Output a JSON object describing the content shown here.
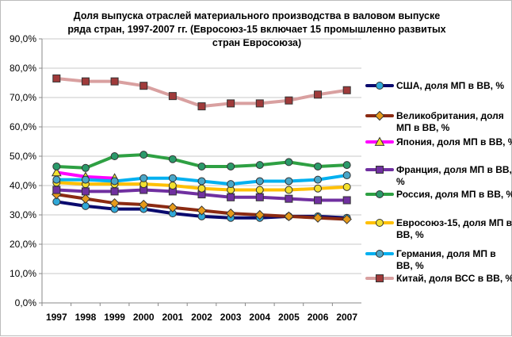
{
  "chart_data": {
    "type": "line",
    "title_lines": [
      "Доля выпуска отраслей материального производства в валовом выпуске",
      "ряда стран, 1997-2007 гг. (Евросоюз-15 включает 15 промышленно развитых",
      "стран Евросоюза)"
    ],
    "xlabel": "",
    "ylabel": "",
    "x": [
      "1997",
      "1998",
      "1999",
      "2000",
      "2001",
      "2002",
      "2003",
      "2004",
      "2005",
      "2006",
      "2007"
    ],
    "ylim": [
      0,
      90
    ],
    "yticks": [
      0,
      10,
      20,
      30,
      40,
      50,
      60,
      70,
      80,
      90
    ],
    "ytick_labels": [
      "0,0%",
      "10,0%",
      "20,0%",
      "30,0%",
      "40,0%",
      "50,0%",
      "60,0%",
      "70,0%",
      "80,0%",
      "90,0%"
    ],
    "grid": true,
    "legend_position": "right",
    "series": [
      {
        "name": "США, доля МП в ВВ, %",
        "legend_lines": [
          "США, доля МП в ВВ, %"
        ],
        "color": "#0a0a6e",
        "marker": "circle",
        "marker_color": "#2fa8d8",
        "values": [
          34.5,
          33.0,
          32.0,
          32.0,
          30.5,
          29.5,
          29.0,
          29.0,
          29.5,
          29.5,
          29.0
        ]
      },
      {
        "name": "Великобритания, доля МП в ВВ, %",
        "legend_lines": [
          "Великобритания, доля",
          "МП в ВВ, %"
        ],
        "color": "#8b2a12",
        "marker": "diamond",
        "marker_color": "#e69a1a",
        "values": [
          37.0,
          35.5,
          34.0,
          33.5,
          32.5,
          31.5,
          30.5,
          30.0,
          29.5,
          29.0,
          28.5
        ]
      },
      {
        "name": "Япония, доля МП в ВВ, %",
        "legend_lines": [
          "Япония, доля МП в ВВ, %"
        ],
        "color": "#ff00ff",
        "marker": "triangle",
        "marker_color": "#f2e030",
        "values": [
          44.5,
          43.0,
          42.5,
          null,
          null,
          null,
          null,
          null,
          null,
          null,
          null
        ]
      },
      {
        "name": "Франция, доля МП в ВВ, %",
        "legend_lines": [
          "Франция, доля МП в ВВ,",
          "%"
        ],
        "color": "#7030a0",
        "marker": "square",
        "marker_color": "#7030a0",
        "values": [
          38.5,
          38.0,
          38.0,
          38.5,
          38.0,
          37.0,
          36.0,
          36.0,
          35.5,
          35.0,
          35.0
        ]
      },
      {
        "name": "Россия, доля МП в ВВ, %",
        "legend_lines": [
          "Россия, доля МП в ВВ, %"
        ],
        "color": "#2ea043",
        "marker": "circle",
        "marker_color": "#2a9a6a",
        "values": [
          46.5,
          46.0,
          50.0,
          50.5,
          49.0,
          46.5,
          46.5,
          47.0,
          48.0,
          46.5,
          47.0
        ]
      },
      {
        "name": "Евросоюз-15, доля МП в ВВ, %",
        "legend_lines": [
          "Евросоюз-15, доля МП в",
          "ВВ, %"
        ],
        "color": "#ffc000",
        "marker": "circle",
        "marker_color": "#f2e030",
        "values": [
          41.0,
          40.5,
          40.5,
          40.5,
          40.0,
          39.0,
          38.5,
          38.5,
          38.5,
          39.0,
          39.5
        ]
      },
      {
        "name": "Германия, доля МП в ВВ, %",
        "legend_lines": [
          "Германия, доля МП в",
          "ВВ, %"
        ],
        "color": "#00b0f0",
        "marker": "circle",
        "marker_color": "#4aa6c8",
        "values": [
          42.0,
          42.0,
          41.5,
          42.5,
          42.5,
          41.5,
          40.5,
          41.5,
          41.5,
          42.0,
          43.5
        ]
      },
      {
        "name": "Китай, доля ВСС в ВВ, %",
        "legend_lines": [
          "Китай, доля ВСС в ВВ, %"
        ],
        "color": "#d9a0a0",
        "marker": "square",
        "marker_color": "#a03a3a",
        "values": [
          76.5,
          75.5,
          75.5,
          74.0,
          70.5,
          67.0,
          68.0,
          68.0,
          69.0,
          71.0,
          72.5
        ]
      }
    ]
  }
}
